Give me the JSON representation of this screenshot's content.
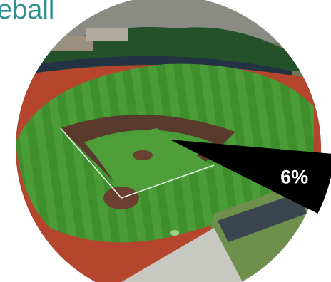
{
  "chart_data": {
    "type": "pie",
    "title": "eball",
    "values": [
      6
    ],
    "value_labels": [
      "6%"
    ],
    "color": "#000000"
  }
}
